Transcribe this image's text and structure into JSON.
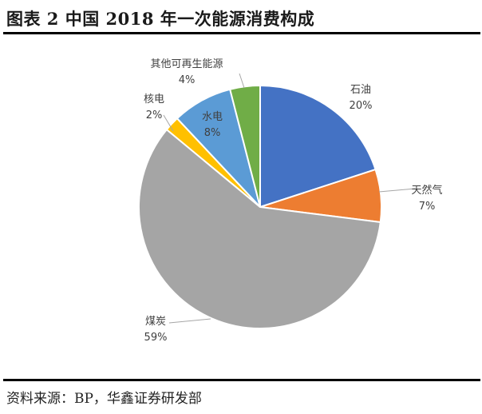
{
  "title": "图表 2 中国 2018 年一次能源消费构成",
  "source": "资料来源：BP，华鑫证券研发部",
  "chart_data": {
    "type": "pie",
    "title": "图表 2 中国 2018 年一次能源消费构成",
    "start_angle_deg": 0,
    "direction": "clockwise",
    "slices": [
      {
        "label": "石油",
        "value": 20,
        "value_label": "20%",
        "color": "#4472C4"
      },
      {
        "label": "天然气",
        "value": 7,
        "value_label": "7%",
        "color": "#ED7D31"
      },
      {
        "label": "煤炭",
        "value": 59,
        "value_label": "59%",
        "color": "#A5A5A5"
      },
      {
        "label": "核电",
        "value": 2,
        "value_label": "2%",
        "color": "#FFC000"
      },
      {
        "label": "水电",
        "value": 8,
        "value_label": "8%",
        "color": "#5B9BD5"
      },
      {
        "label": "其他可再生能源",
        "value": 4,
        "value_label": "4%",
        "color": "#70AD47"
      }
    ]
  }
}
